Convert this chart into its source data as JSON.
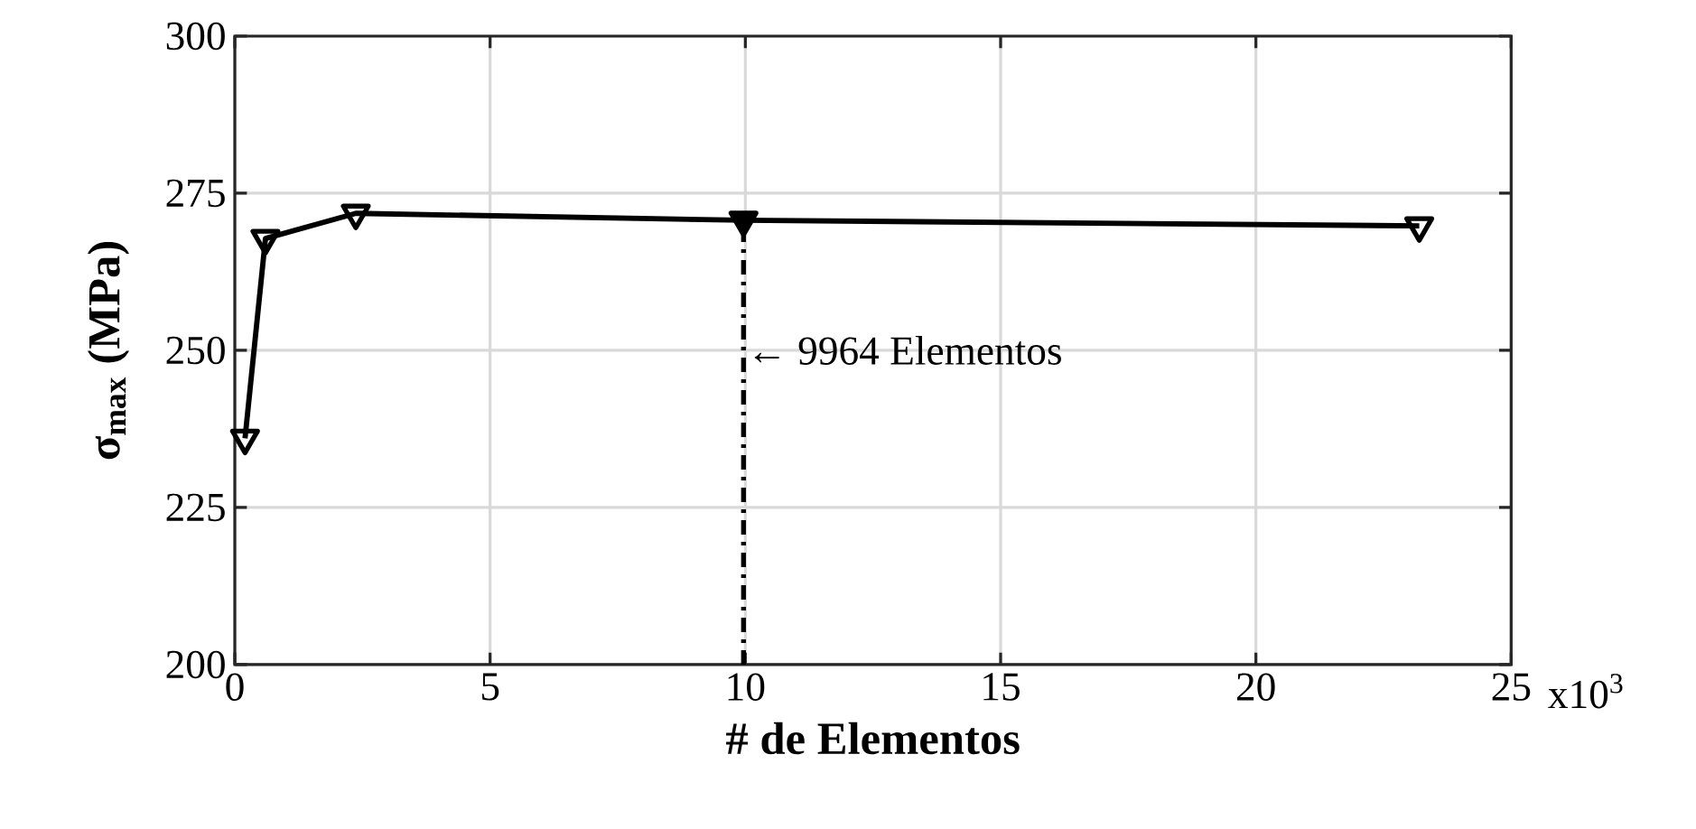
{
  "chart_data": {
    "type": "line",
    "xlabel": "# de Elementos",
    "ylabel": "σ$_{max}$ (MPa)",
    "xlim": [
      0,
      25
    ],
    "xticks": [
      0,
      5,
      10,
      15,
      20,
      25
    ],
    "ylim": [
      200,
      300
    ],
    "yticks": [
      200,
      225,
      250,
      275,
      300
    ],
    "grid": true,
    "marker": "triangle",
    "line_style": "solid",
    "series": [
      {
        "color": "#000000",
        "x": [
          0.2,
          0.6,
          2.37,
          9.964,
          23.2
        ],
        "values": [
          236,
          267.8,
          271.8,
          270.7,
          269.8
        ]
      },
      {
        "type": "scatter",
        "color": "#000000",
        "x": [
          9.964
        ],
        "values": [
          270.7
        ]
      }
    ],
    "ref_lines": [
      {
        "axis": "x",
        "value": 9.964,
        "color": "#000000",
        "line_style": "dashed"
      }
    ],
    "annotations": [
      {
        "text": "← 9964 Elementos",
        "x": 9.964,
        "y": 250
      },
      "x10$^{3}$"
    ]
  }
}
